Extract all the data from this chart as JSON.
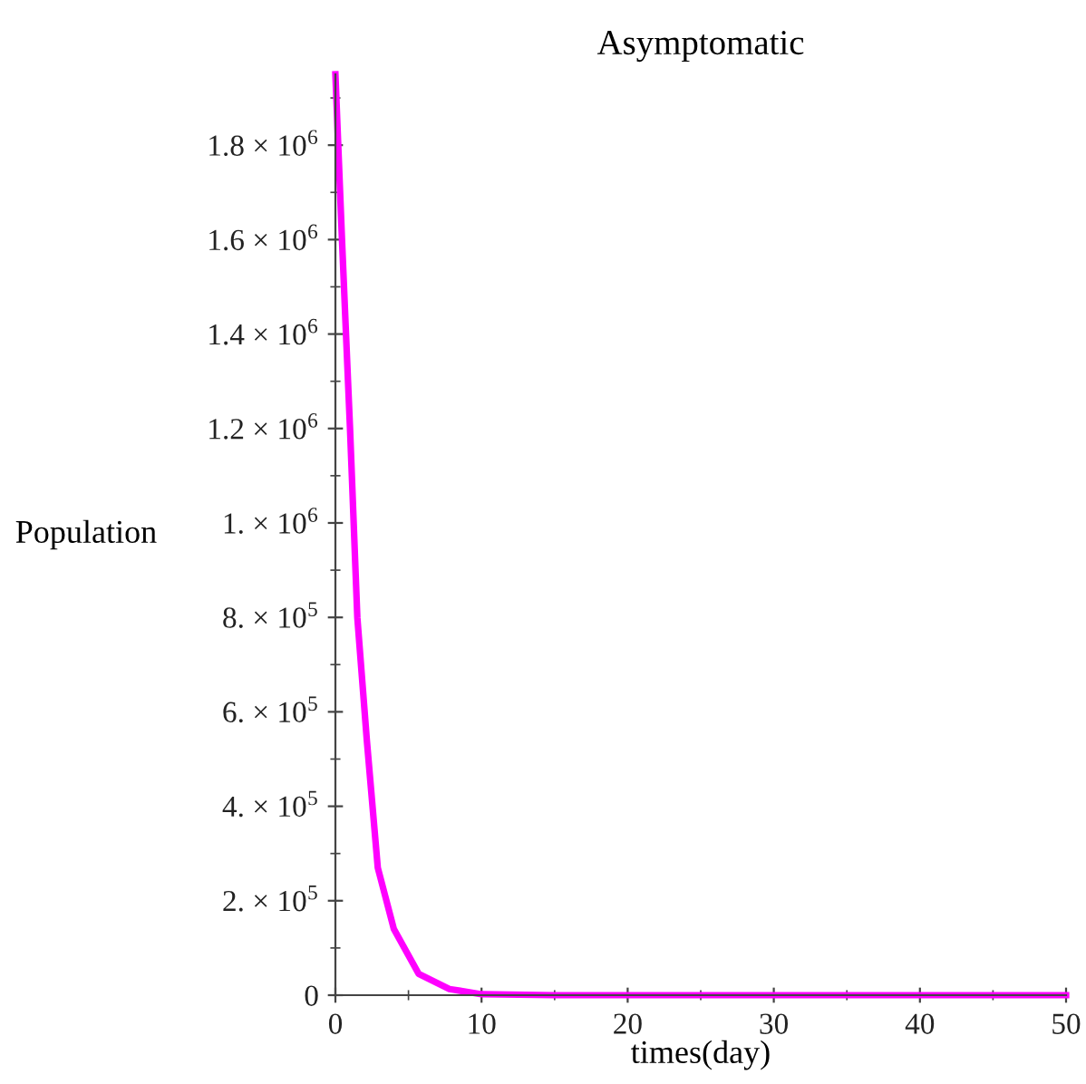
{
  "chart_data": {
    "type": "line",
    "title": "Asymptomatic",
    "xlabel": "times(day)",
    "ylabel": "Population",
    "x": [
      0,
      0.45,
      1.0,
      1.5,
      2.15,
      2.9,
      4.0,
      5.7,
      7.8,
      10,
      15,
      20,
      30,
      40,
      50
    ],
    "series": [
      {
        "color": "#ff00ff",
        "values": [
          1950000,
          1600000,
          1200000,
          800000,
          540000,
          270000,
          140000,
          45000,
          13000,
          2000,
          0,
          0,
          0,
          0,
          0
        ]
      }
    ],
    "xlim": [
      0,
      50
    ],
    "ylim": [
      0,
      1950000
    ],
    "xticks": [
      0,
      10,
      20,
      30,
      40,
      50
    ],
    "yticks": [
      0,
      {
        "value": 200000,
        "label": "2. × 10$^{5}$"
      },
      {
        "value": 400000,
        "label": "4. × 10$^{5}$"
      },
      {
        "value": 600000,
        "label": "6. × 10$^{5}$"
      },
      {
        "value": 800000,
        "label": "8. × 10$^{5}$"
      },
      {
        "value": 1000000,
        "label": "1. × 10$^{6}$"
      },
      {
        "value": 1200000,
        "label": "1.2 × 10$^{6}$"
      },
      {
        "value": 1400000,
        "label": "1.4 × 10$^{6}$"
      },
      {
        "value": 1600000,
        "label": "1.6 × 10$^{6}$"
      },
      {
        "value": 1800000,
        "label": "1.8 × 10$^{6}$"
      }
    ],
    "grid": false,
    "legend": false,
    "marker": "none",
    "line_style": "solid"
  }
}
